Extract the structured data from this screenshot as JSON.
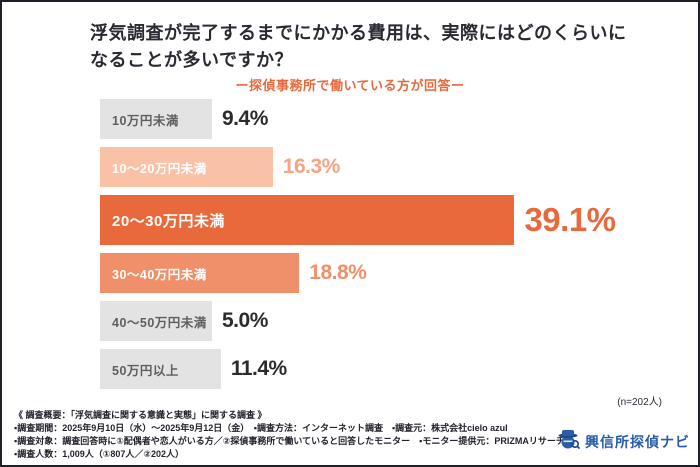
{
  "title": {
    "line1": "浮気調査が完了するまでにかかる費用は、実際にはどのくらいに",
    "line2": "なることが多いですか？",
    "subtitle": "ー探偵事務所で働いている方が回答ー"
  },
  "chart_data": {
    "type": "bar",
    "orientation": "horizontal",
    "title": "浮気調査が完了するまでにかかる費用は、実際にはどのくらいになることが多いですか？",
    "subtitle": "ー探偵事務所で働いている方が回答ー",
    "categories": [
      "10万円未満",
      "10〜20万円未満",
      "20〜30万円未満",
      "30〜40万円未満",
      "40〜50万円未満",
      "50万円以上"
    ],
    "values": [
      9.4,
      16.3,
      39.1,
      18.8,
      5.0,
      11.4
    ],
    "value_labels": [
      "9.4%",
      "16.3%",
      "39.1%",
      "18.8%",
      "5.0%",
      "11.4%"
    ],
    "bar_colors": [
      "#e3e3e3",
      "#f9c2a6",
      "#e8693c",
      "#f0906a",
      "#e3e3e3",
      "#e3e3e3"
    ],
    "label_colors": [
      "#5f5f5f",
      "#ffffff",
      "#ffffff",
      "#ffffff",
      "#5f5f5f",
      "#5f5f5f"
    ],
    "pct_colors": [
      "#2b2b2b",
      "#f6a583",
      "#e8693c",
      "#f0906a",
      "#2b2b2b",
      "#2b2b2b"
    ],
    "highlight_index": 2,
    "xlim": [
      0,
      42
    ],
    "grid": false,
    "legend": "none",
    "sample_note": "(n=202人)"
  },
  "footer": {
    "line1": "《 調査概要：「浮気調査に関する意識と実態」に関する調査 》",
    "line2": "▪調査期間：2025年9月10日（水）〜2025年9月12日（金）　▪調査方法：インターネット調査　▪調査元：株式会社cielo azul",
    "line3": "▪調査対象：調査回答時に①配偶者や恋人がいる方／②探偵事務所で働いていると回答したモニター　▪モニター提供元：PRIZMAリサーチ",
    "line4": "▪調査人数：1,009人（①807人／②202人）",
    "logo_text": "興信所探偵ナビ",
    "logo_color": "#2a5caa"
  }
}
